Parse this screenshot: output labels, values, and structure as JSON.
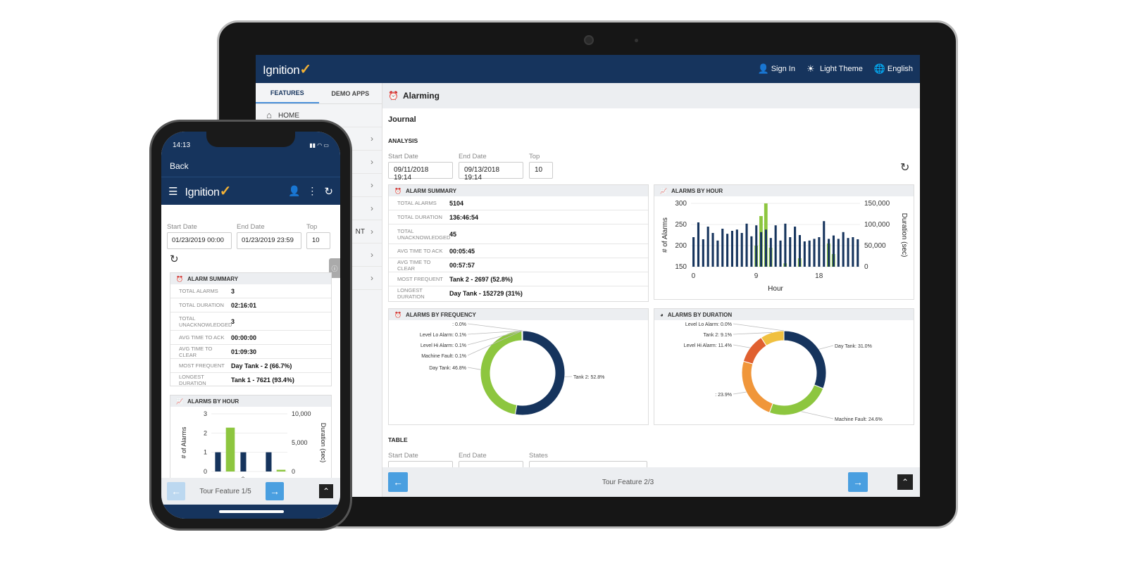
{
  "tablet": {
    "brand": "Ignition",
    "brand_check": "✓",
    "sign_in": "Sign In",
    "theme": "Light Theme",
    "language": "English",
    "tabs": [
      "FEATURES",
      "DEMO APPS"
    ],
    "home": "HOME",
    "partial_item": "NT",
    "page_title": "Alarming",
    "section": "Journal",
    "analysis": "ANALYSIS",
    "start_label": "Start Date",
    "start_value": "09/11/2018 19:14",
    "end_label": "End Date",
    "end_value": "09/13/2018 19:14",
    "top_label": "Top",
    "top_value": "10",
    "summary": {
      "title": "ALARM SUMMARY",
      "rows": [
        {
          "k": "TOTAL ALARMS",
          "v": "5104"
        },
        {
          "k": "TOTAL DURATION",
          "v": "136:46:54"
        },
        {
          "k": "TOTAL UNACKNOWLEDGED",
          "v": "45"
        },
        {
          "k": "AVG TIME TO ACK",
          "v": "00:05:45"
        },
        {
          "k": "AVG TIME TO CLEAR",
          "v": "00:57:57"
        },
        {
          "k": "MOST FREQUENT",
          "v": "Tank 2 - 2697 (52.8%)"
        },
        {
          "k": "LONGEST DURATION",
          "v": "Day Tank - 152729 (31%)"
        }
      ]
    },
    "hour_title": "ALARMS BY HOUR",
    "freq_title": "ALARMS BY FREQUENCY",
    "dur_title": "ALARMS BY DURATION",
    "table_label": "TABLE",
    "states_label": "States",
    "tour": "Tour Feature 2/3"
  },
  "phone": {
    "time": "14:13",
    "back": "Back",
    "brand": "Ignition",
    "start_label": "Start Date",
    "start_value": "01/23/2019 00:00",
    "end_label": "End Date",
    "end_value": "01/23/2019 23:59",
    "top_label": "Top",
    "top_value": "10",
    "summary": {
      "title": "ALARM SUMMARY",
      "rows": [
        {
          "k": "TOTAL ALARMS",
          "v": "3"
        },
        {
          "k": "TOTAL DURATION",
          "v": "02:16:01"
        },
        {
          "k": "TOTAL UNACKNOWLEDGED",
          "v": "3"
        },
        {
          "k": "AVG TIME TO ACK",
          "v": "00:00:00"
        },
        {
          "k": "AVG TIME TO CLEAR",
          "v": "01:09:30"
        },
        {
          "k": "MOST FREQUENT",
          "v": "Day Tank - 2 (66.7%)"
        },
        {
          "k": "LONGEST DURATION",
          "v": "Tank 1 - 7621 (93.4%)"
        }
      ]
    },
    "hour_title": "ALARMS BY HOUR",
    "tour": "Tour Feature 1/5"
  },
  "chart_data": [
    {
      "type": "bar",
      "title": "ALARMS BY HOUR",
      "xlabel": "Hour",
      "ylabel": "# of Alarms",
      "y2label": "Duration (sec)",
      "ylim": [
        150,
        300
      ],
      "y2lim": [
        0,
        150000
      ],
      "yticks": [
        "300",
        "250",
        "200",
        "150"
      ],
      "y2ticks": [
        "150,000",
        "100,000",
        "50,000",
        "0"
      ],
      "xticks": [
        "0",
        "9",
        "18"
      ],
      "colors": {
        "alarms": "#16345d",
        "duration": "#8dc63f"
      },
      "series": [
        {
          "name": "# of Alarms",
          "values": [
            220,
            255,
            215,
            245,
            230,
            212,
            240,
            228,
            235,
            238,
            230,
            252,
            222,
            248,
            232,
            238,
            218,
            248,
            212,
            252,
            220,
            245,
            225,
            210,
            212,
            216,
            220,
            258,
            216,
            224,
            216,
            232,
            218,
            220,
            215
          ]
        },
        {
          "name": "Duration (sec)",
          "values": [
            0,
            0,
            0,
            0,
            0,
            0,
            0,
            0,
            0,
            0,
            0,
            0,
            0,
            50000,
            120000,
            150000,
            45000,
            0,
            0,
            8000,
            0,
            0,
            20000,
            0,
            0,
            0,
            0,
            0,
            55000,
            30000,
            0,
            0,
            0,
            0,
            0
          ]
        }
      ]
    },
    {
      "type": "pie",
      "title": "ALARMS BY FREQUENCY",
      "labels": [
        "Tank 2",
        "Day Tank",
        "Machine Fault",
        "Level Hi Alarm",
        "Level Lo Alarm",
        ""
      ],
      "display": [
        "Tank 2: 52.8%",
        "Day Tank: 46.8%",
        "Machine Fault: 0.1%",
        "Level Hi Alarm: 0.1%",
        "Level Lo Alarm: 0.1%",
        ": 0.0%"
      ],
      "values": [
        52.8,
        46.8,
        0.1,
        0.1,
        0.1,
        0.0
      ],
      "colors": [
        "#16345d",
        "#8dc63f",
        "#aaaaaa",
        "#f0c040",
        "#e06030",
        "#999999"
      ]
    },
    {
      "type": "pie",
      "title": "ALARMS BY DURATION",
      "labels": [
        "Day Tank",
        "Machine Fault",
        "",
        "Level Hi Alarm",
        "Tank 2",
        "Level Lo Alarm"
      ],
      "display": [
        "Day Tank: 31.0%",
        "Machine Fault: 24.6%",
        ": 23.9%",
        "Level Hi Alarm: 11.4%",
        "Tank 2: 9.1%",
        "Level Lo Alarm: 0.0%"
      ],
      "values": [
        31.0,
        24.6,
        23.9,
        11.4,
        9.1,
        0.0
      ],
      "colors": [
        "#16345d",
        "#8dc63f",
        "#f0963a",
        "#e06030",
        "#f0c040",
        "#999999"
      ]
    },
    {
      "type": "bar",
      "title": "ALARMS BY HOUR (mobile)",
      "ylabel": "# of Alarms",
      "y2label": "Duration (sec)",
      "ylim": [
        0,
        3
      ],
      "y2lim": [
        0,
        10000
      ],
      "yticks": [
        "3",
        "2",
        "1",
        "0"
      ],
      "y2ticks": [
        "10,000",
        "5,000",
        "0"
      ],
      "xticks": [
        "0"
      ],
      "colors": {
        "alarms": "#16345d",
        "duration": "#8dc63f"
      },
      "series": [
        {
          "name": "# of Alarms",
          "values": [
            1,
            0,
            1,
            0,
            1,
            0
          ]
        },
        {
          "name": "Duration (sec)",
          "values": [
            0,
            7600,
            0,
            0,
            0,
            300
          ]
        }
      ]
    }
  ]
}
